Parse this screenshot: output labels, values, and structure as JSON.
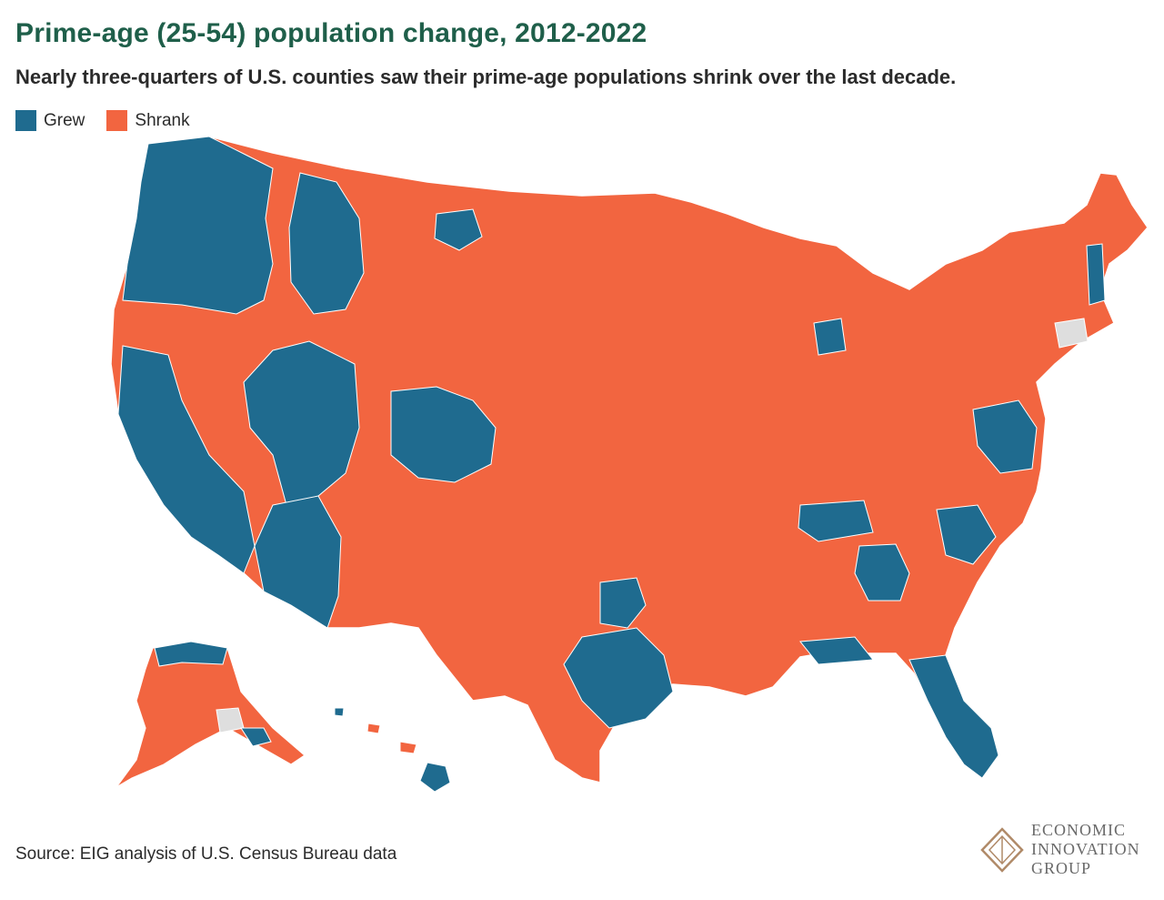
{
  "header": {
    "title": "Prime-age (25-54) population change, 2012-2022",
    "subtitle": "Nearly three-quarters of U.S. counties saw their prime-age populations shrink over the last decade."
  },
  "legend": {
    "items": [
      {
        "label": "Grew",
        "color": "#1f6b8f"
      },
      {
        "label": "Shrank",
        "color": "#f26540"
      }
    ]
  },
  "colors": {
    "grew": "#1f6b8f",
    "shrank": "#f26540",
    "no_data": "#dedede",
    "borders": "#ffffff",
    "title": "#1f5f4a",
    "logo": "#b08a68"
  },
  "footer": {
    "source": "Source: EIG analysis of U.S. Census Bureau data",
    "logo_lines": [
      "ECONOMIC",
      "INNOVATION",
      "GROUP"
    ]
  }
}
